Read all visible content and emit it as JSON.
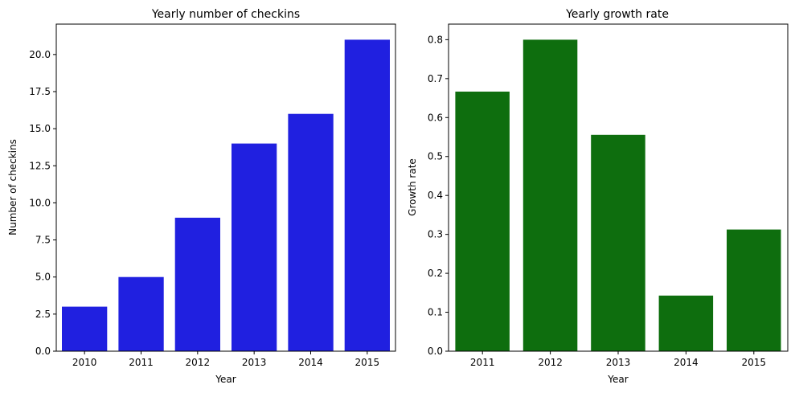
{
  "chart_data": [
    {
      "type": "bar",
      "title": "Yearly number of checkins",
      "xlabel": "Year",
      "ylabel": "Number of checkins",
      "categories": [
        "2010",
        "2011",
        "2012",
        "2013",
        "2014",
        "2015"
      ],
      "values": [
        3,
        5,
        9,
        14,
        16,
        21
      ],
      "ylim": [
        0,
        22.05
      ],
      "yticks": [
        "0.0",
        "2.5",
        "5.0",
        "7.5",
        "10.0",
        "12.5",
        "15.0",
        "17.5",
        "20.0"
      ],
      "color": "#2020e0",
      "grid": false
    },
    {
      "type": "bar",
      "title": "Yearly growth rate",
      "xlabel": "Year",
      "ylabel": "Growth rate",
      "categories": [
        "2011",
        "2012",
        "2013",
        "2014",
        "2015"
      ],
      "values": [
        0.6667,
        0.8,
        0.5556,
        0.1429,
        0.3125
      ],
      "ylim": [
        0,
        0.84
      ],
      "yticks": [
        "0.0",
        "0.1",
        "0.2",
        "0.3",
        "0.4",
        "0.5",
        "0.6",
        "0.7",
        "0.8"
      ],
      "color": "#0e6e0e",
      "grid": false
    }
  ]
}
